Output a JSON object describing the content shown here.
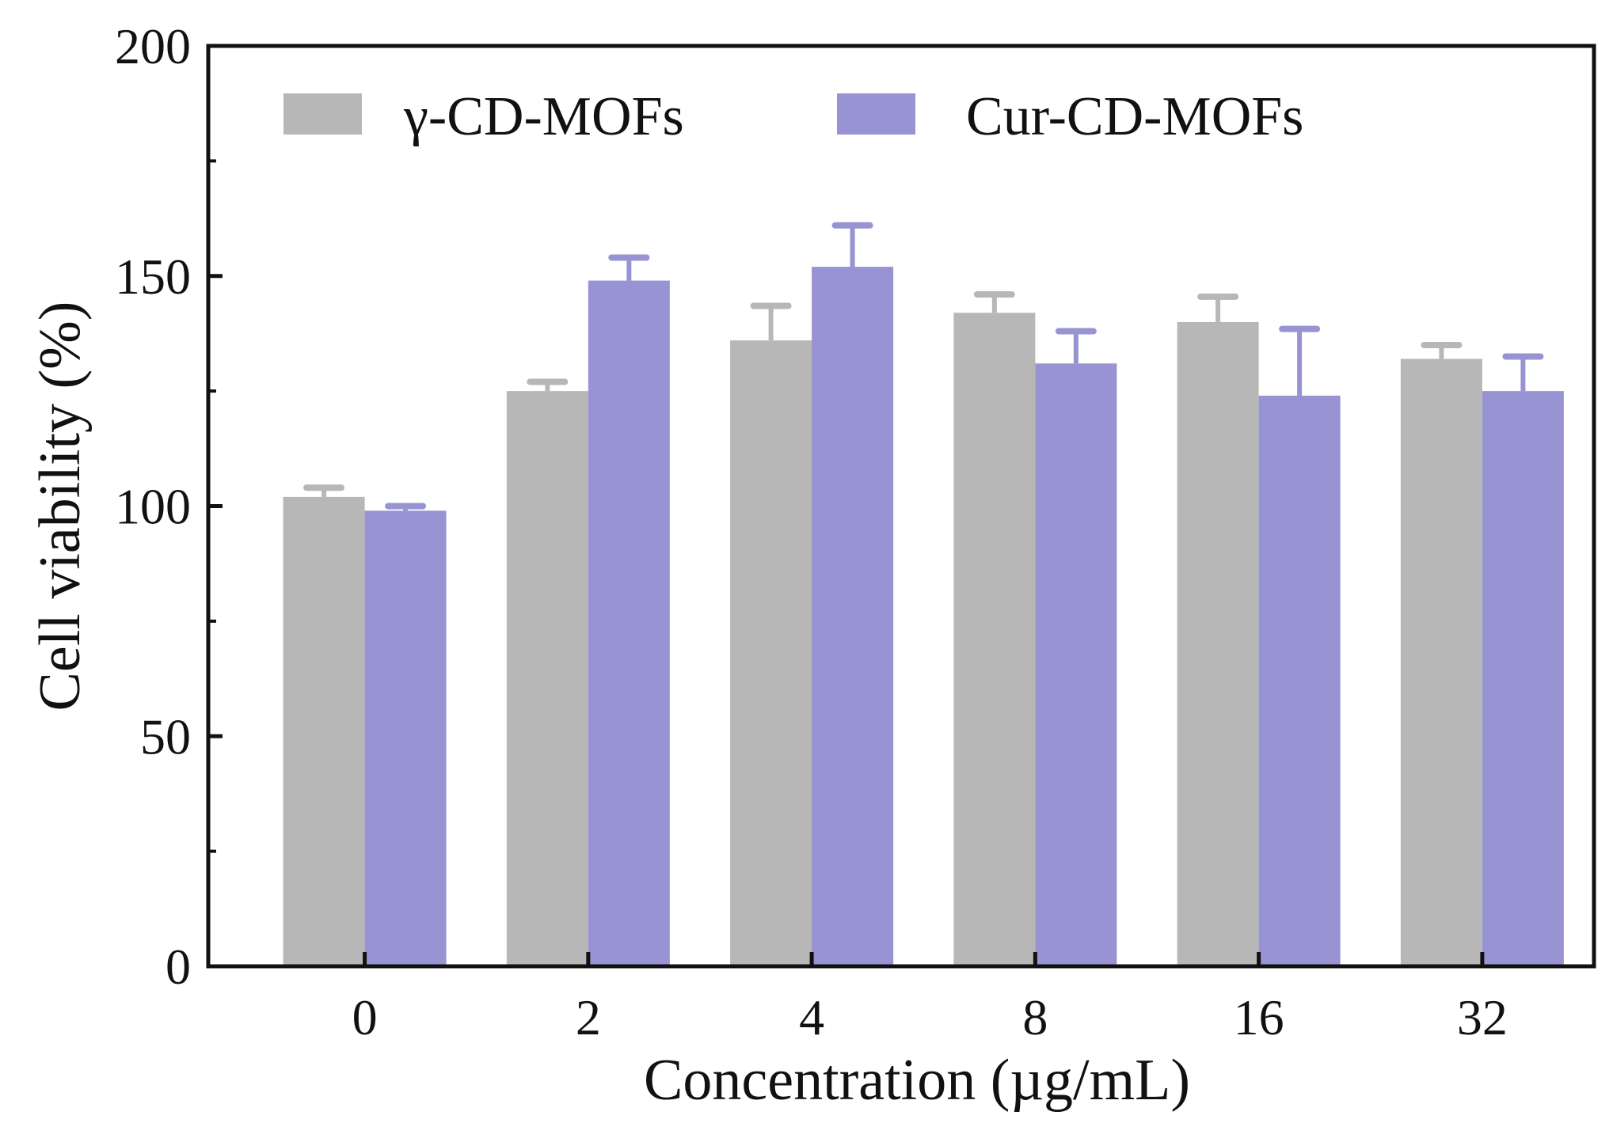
{
  "chart_data": {
    "type": "bar",
    "title": "",
    "xlabel": "Concentration (µg/mL)",
    "ylabel": "Cell viability (%)",
    "ylim": [
      0,
      200
    ],
    "yticks": [
      0,
      50,
      100,
      150,
      200
    ],
    "categories": [
      "0",
      "2",
      "4",
      "8",
      "16",
      "32"
    ],
    "legend_position": "top",
    "series": [
      {
        "name": "γ-CD-MOFs",
        "color": "#b7b7b7",
        "errorbar_color": "#b7b7b7",
        "values": [
          102,
          125,
          136,
          142,
          140,
          132
        ],
        "errors": [
          2,
          2,
          7.5,
          4,
          5.5,
          3
        ]
      },
      {
        "name": "Cur-CD-MOFs",
        "color": "#9893d2",
        "errorbar_color": "#9893d2",
        "values": [
          99,
          149,
          152,
          131,
          124,
          125
        ],
        "errors": [
          1,
          5,
          9,
          7,
          14.5,
          7.5
        ]
      }
    ]
  }
}
